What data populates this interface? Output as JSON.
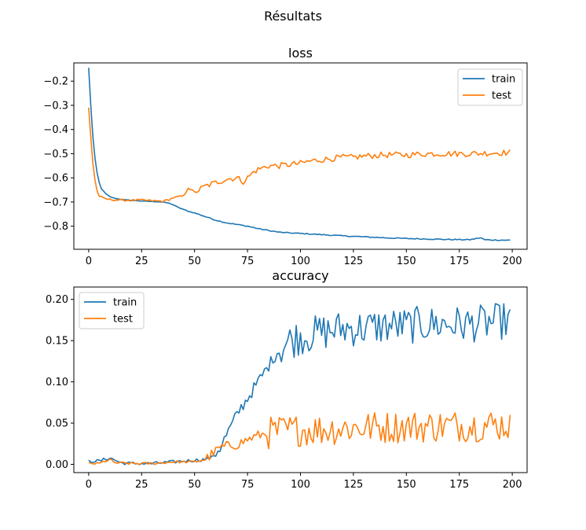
{
  "figure": {
    "suptitle": "Résultats"
  },
  "chart_data": [
    {
      "type": "line",
      "title": "loss",
      "xlabel": "",
      "ylabel": "",
      "xlim": [
        -7,
        207
      ],
      "ylim": [
        -0.8955,
        -0.1245
      ],
      "xticks": [
        0,
        25,
        50,
        75,
        100,
        125,
        150,
        175,
        200
      ],
      "yticks": [
        -0.8,
        -0.7,
        -0.6,
        -0.5,
        -0.4,
        -0.3,
        -0.2
      ],
      "legend": "top-right",
      "colors": {
        "train": "#1f77b4",
        "test": "#ff7f0e"
      },
      "series": [
        {
          "name": "train",
          "color": "#1f77b4",
          "keypoints": [
            [
              0,
              -0.145
            ],
            [
              1,
              -0.3
            ],
            [
              2,
              -0.43
            ],
            [
              3,
              -0.52
            ],
            [
              4,
              -0.58
            ],
            [
              5,
              -0.62
            ],
            [
              6,
              -0.645
            ],
            [
              8,
              -0.665
            ],
            [
              10,
              -0.678
            ],
            [
              12,
              -0.684
            ],
            [
              15,
              -0.689
            ],
            [
              20,
              -0.693
            ],
            [
              25,
              -0.696
            ],
            [
              30,
              -0.698
            ],
            [
              35,
              -0.7
            ],
            [
              38,
              -0.705
            ],
            [
              40,
              -0.712
            ],
            [
              43,
              -0.725
            ],
            [
              47,
              -0.738
            ],
            [
              50,
              -0.745
            ],
            [
              55,
              -0.76
            ],
            [
              60,
              -0.775
            ],
            [
              65,
              -0.786
            ],
            [
              70,
              -0.793
            ],
            [
              75,
              -0.8
            ],
            [
              80,
              -0.81
            ],
            [
              85,
              -0.818
            ],
            [
              90,
              -0.825
            ],
            [
              95,
              -0.828
            ],
            [
              100,
              -0.83
            ],
            [
              110,
              -0.835
            ],
            [
              120,
              -0.84
            ],
            [
              130,
              -0.844
            ],
            [
              140,
              -0.848
            ],
            [
              150,
              -0.851
            ],
            [
              160,
              -0.853
            ],
            [
              170,
              -0.855
            ],
            [
              180,
              -0.856
            ],
            [
              185,
              -0.848
            ],
            [
              187,
              -0.856
            ],
            [
              190,
              -0.857
            ],
            [
              199,
              -0.858
            ]
          ]
        },
        {
          "name": "test",
          "color": "#ff7f0e",
          "keypoints": [
            [
              0,
              -0.31
            ],
            [
              1,
              -0.43
            ],
            [
              2,
              -0.54
            ],
            [
              3,
              -0.61
            ],
            [
              4,
              -0.655
            ],
            [
              5,
              -0.675
            ],
            [
              7,
              -0.685
            ],
            [
              10,
              -0.69
            ],
            [
              15,
              -0.692
            ],
            [
              20,
              -0.693
            ],
            [
              25,
              -0.692
            ],
            [
              30,
              -0.695
            ],
            [
              35,
              -0.697
            ],
            [
              38,
              -0.69
            ],
            [
              40,
              -0.682
            ],
            [
              45,
              -0.675
            ],
            [
              47,
              -0.64
            ],
            [
              50,
              -0.66
            ],
            [
              55,
              -0.635
            ],
            [
              60,
              -0.62
            ],
            [
              65,
              -0.605
            ],
            [
              70,
              -0.6
            ],
            [
              73,
              -0.615
            ],
            [
              75,
              -0.6
            ],
            [
              78,
              -0.575
            ],
            [
              80,
              -0.565
            ],
            [
              85,
              -0.55
            ],
            [
              90,
              -0.55
            ],
            [
              95,
              -0.545
            ],
            [
              100,
              -0.54
            ],
            [
              105,
              -0.53
            ],
            [
              110,
              -0.525
            ],
            [
              115,
              -0.52
            ],
            [
              120,
              -0.515
            ],
            [
              125,
              -0.515
            ],
            [
              130,
              -0.51
            ],
            [
              140,
              -0.505
            ],
            [
              150,
              -0.505
            ],
            [
              160,
              -0.5
            ],
            [
              170,
              -0.5
            ],
            [
              180,
              -0.5
            ],
            [
              190,
              -0.497
            ],
            [
              199,
              -0.495
            ]
          ]
        }
      ]
    },
    {
      "type": "line",
      "title": "accuracy",
      "xlabel": "",
      "ylabel": "",
      "xlim": [
        -7,
        207
      ],
      "ylim": [
        -0.01,
        0.215
      ],
      "xticks": [
        0,
        25,
        50,
        75,
        100,
        125,
        150,
        175,
        200
      ],
      "yticks": [
        0.0,
        0.05,
        0.1,
        0.15,
        0.2
      ],
      "legend": "top-left",
      "colors": {
        "train": "#1f77b4",
        "test": "#ff7f0e"
      },
      "series": [
        {
          "name": "train",
          "color": "#1f77b4",
          "keypoints": [
            [
              0,
              0.004
            ],
            [
              5,
              0.004
            ],
            [
              10,
              0.008
            ],
            [
              15,
              0.002
            ],
            [
              20,
              0.001
            ],
            [
              25,
              0.001
            ],
            [
              30,
              0.001
            ],
            [
              35,
              0.002
            ],
            [
              40,
              0.003
            ],
            [
              45,
              0.004
            ],
            [
              50,
              0.005
            ],
            [
              55,
              0.006
            ],
            [
              58,
              0.008
            ],
            [
              62,
              0.02
            ],
            [
              65,
              0.035
            ],
            [
              68,
              0.05
            ],
            [
              71,
              0.065
            ],
            [
              75,
              0.08
            ],
            [
              80,
              0.1
            ],
            [
              85,
              0.12
            ],
            [
              90,
              0.14
            ],
            [
              95,
              0.15
            ],
            [
              100,
              0.155
            ],
            [
              110,
              0.16
            ],
            [
              120,
              0.165
            ],
            [
              130,
              0.165
            ],
            [
              140,
              0.168
            ],
            [
              150,
              0.168
            ],
            [
              160,
              0.17
            ],
            [
              170,
              0.17
            ],
            [
              180,
              0.17
            ],
            [
              190,
              0.172
            ],
            [
              199,
              0.175
            ]
          ]
        },
        {
          "name": "test",
          "color": "#ff7f0e",
          "keypoints": [
            [
              0,
              0.001
            ],
            [
              5,
              0.001
            ],
            [
              10,
              0.006
            ],
            [
              12,
              0.002
            ],
            [
              20,
              0.001
            ],
            [
              30,
              0.001
            ],
            [
              40,
              0.003
            ],
            [
              50,
              0.003
            ],
            [
              55,
              0.006
            ],
            [
              58,
              0.012
            ],
            [
              62,
              0.02
            ],
            [
              65,
              0.022
            ],
            [
              70,
              0.024
            ],
            [
              75,
              0.03
            ],
            [
              80,
              0.035
            ],
            [
              85,
              0.038
            ],
            [
              90,
              0.04
            ],
            [
              100,
              0.042
            ],
            [
              110,
              0.042
            ],
            [
              120,
              0.044
            ],
            [
              130,
              0.045
            ],
            [
              140,
              0.045
            ],
            [
              150,
              0.046
            ],
            [
              160,
              0.046
            ],
            [
              170,
              0.047
            ],
            [
              180,
              0.047
            ],
            [
              190,
              0.048
            ],
            [
              199,
              0.048
            ]
          ]
        }
      ]
    }
  ]
}
